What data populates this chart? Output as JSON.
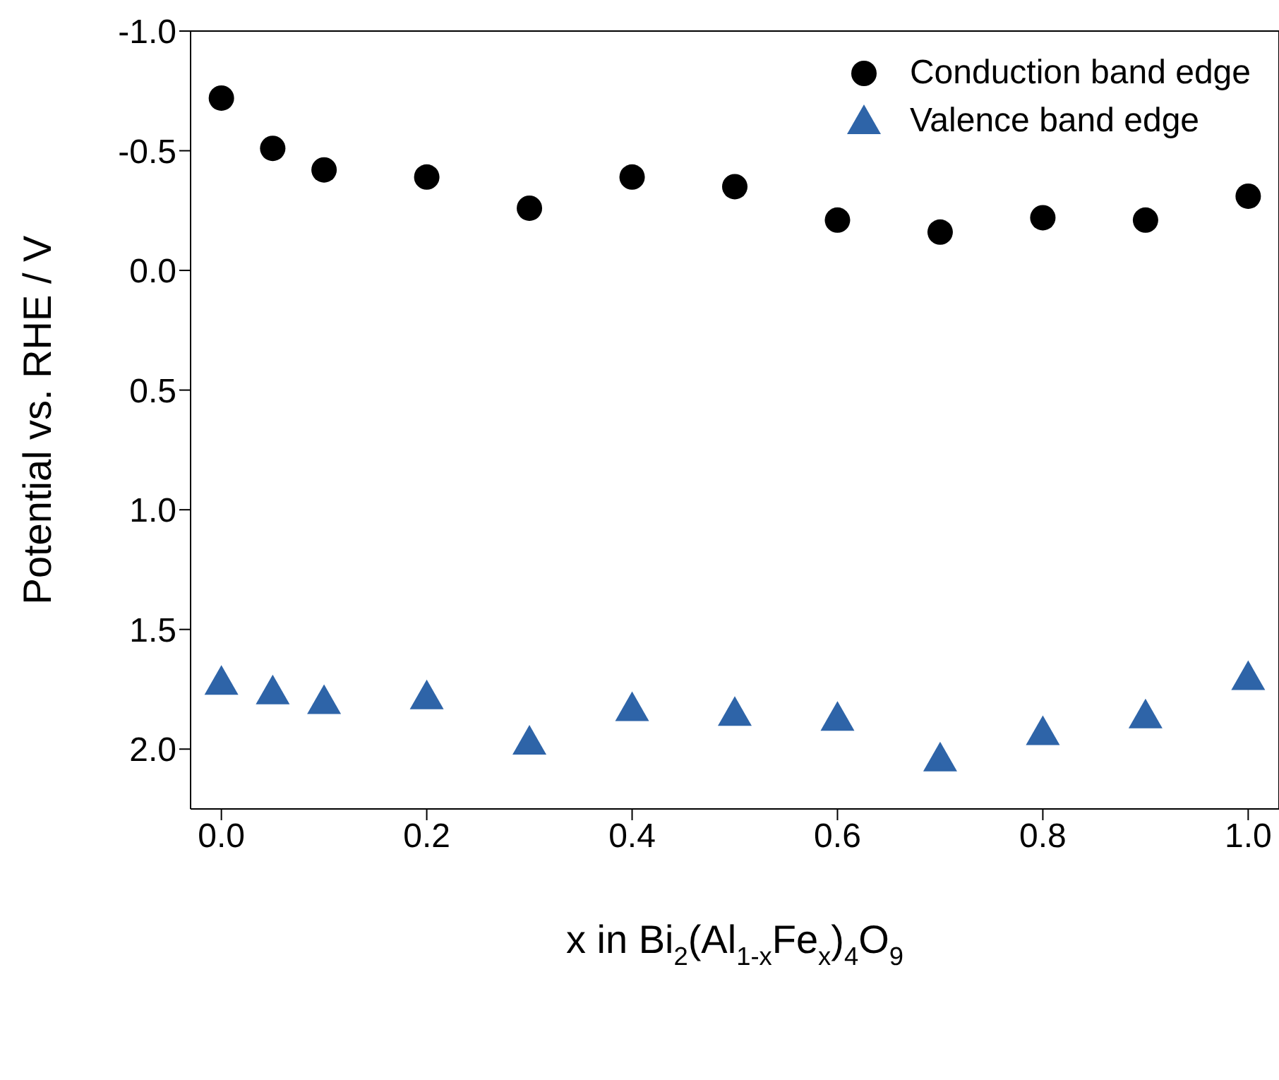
{
  "chart_data": {
    "type": "scatter",
    "xlabel": "x in Bi$_{2}$(Al$_{1-x}$Fe$_{x}$)$_{4}$O$_{9}$",
    "ylabel": "Potential vs. RHE / V",
    "x": [
      0,
      0.05,
      0.1,
      0.2,
      0.3,
      0.4,
      0.5,
      0.6,
      0.7,
      0.8,
      0.9,
      1.0
    ],
    "series": [
      {
        "name": "Conduction band edge",
        "color": "#000000",
        "marker": "circle",
        "values": [
          -0.72,
          -0.51,
          -0.42,
          -0.39,
          -0.26,
          -0.39,
          -0.35,
          -0.21,
          -0.16,
          -0.22,
          -0.21,
          -0.31
        ]
      },
      {
        "name": "Valence band edge",
        "color": "#2e64a8",
        "marker": "triangle",
        "values": [
          1.72,
          1.76,
          1.8,
          1.78,
          1.97,
          1.83,
          1.85,
          1.87,
          2.04,
          1.93,
          1.86,
          1.7
        ]
      }
    ],
    "xlim": [
      -0.03,
      1.03
    ],
    "xticks": [
      {
        "value": 0,
        "label": "0.0"
      },
      {
        "value": 0.2,
        "label": "0.2"
      },
      {
        "value": 0.4,
        "label": "0.4"
      },
      {
        "value": 0.6,
        "label": "0.6"
      },
      {
        "value": 0.8,
        "label": "0.8"
      },
      {
        "value": 1,
        "label": "1.0"
      }
    ],
    "ylim": [
      2.25,
      -1.0
    ],
    "yticks": [
      {
        "value": -1,
        "label": "-1.0"
      },
      {
        "value": -0.5,
        "label": "-0.5"
      },
      {
        "value": 0,
        "label": "0.0"
      },
      {
        "value": 0.5,
        "label": "0.5"
      },
      {
        "value": 1,
        "label": "1.0"
      },
      {
        "value": 1.5,
        "label": "1.5"
      },
      {
        "value": 2,
        "label": "2.0"
      }
    ],
    "legend": "top right"
  }
}
